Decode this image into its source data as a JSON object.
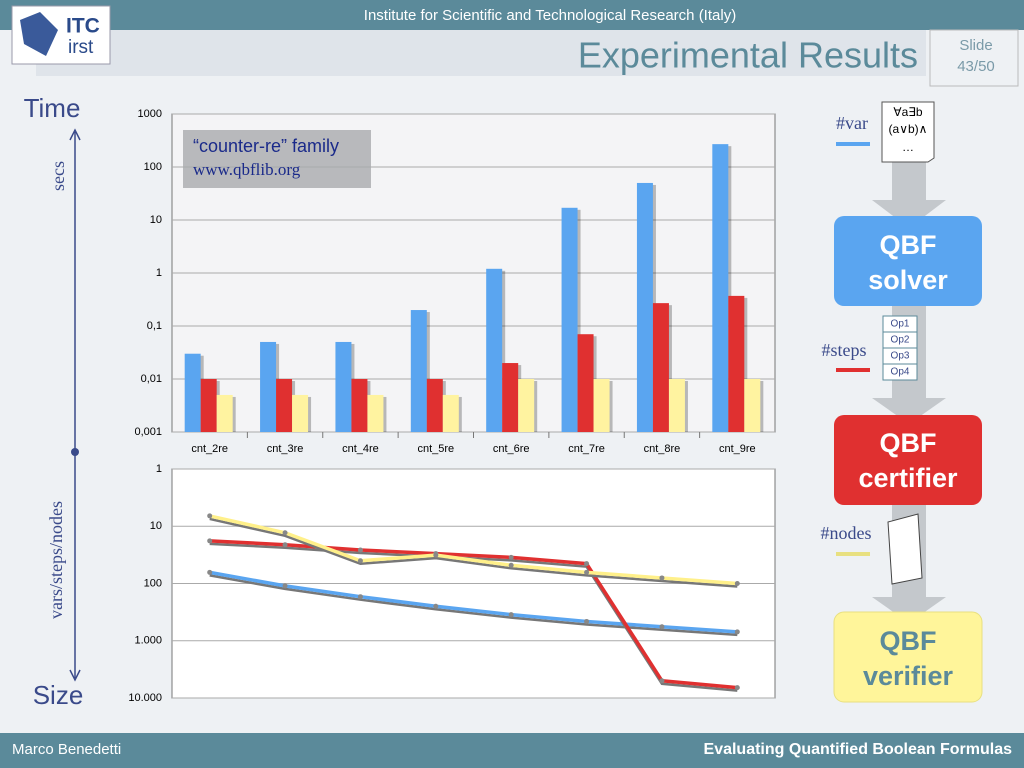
{
  "header": {
    "institute": "Institute for Scientific and Technological Research (Italy)",
    "title": "Experimental Results",
    "slide_label": "Slide",
    "slide_number": "43/50",
    "logo": [
      "ITC",
      "irst"
    ]
  },
  "footer": {
    "author": "Marco Benedetti",
    "talk": "Evaluating Quantified Boolean Formulas"
  },
  "axis_notes": {
    "top": "Time",
    "top_unit": "secs",
    "bottom_unit": "vars/steps/nodes",
    "bottom": "Size"
  },
  "inset": {
    "family": "“counter-re” family",
    "url": "www.qbflib.org"
  },
  "diagram": {
    "var_label": "#var",
    "formula": [
      "∀a∃b",
      "(a∨b)∧",
      "…"
    ],
    "solver": [
      "QBF",
      "solver"
    ],
    "ops": [
      "Op1",
      "Op2",
      "Op3",
      "Op4"
    ],
    "steps_label": "#steps",
    "certifier": [
      "QBF",
      "certifier"
    ],
    "nodes_label": "#nodes",
    "verifier": [
      "QBF",
      "verifier"
    ]
  },
  "chart_data": [
    {
      "type": "bar",
      "log": true,
      "grid": true,
      "categories": [
        "cnt_2re",
        "cnt_3re",
        "cnt_4re",
        "cnt_5re",
        "cnt_6re",
        "cnt_7re",
        "cnt_8re",
        "cnt_9re"
      ],
      "series": [
        {
          "color": "#5aa5f0",
          "values": [
            0.03,
            0.05,
            0.05,
            0.2,
            1.2,
            17,
            50,
            270
          ]
        },
        {
          "color": "#e03030",
          "values": [
            0.01,
            0.01,
            0.01,
            0.01,
            0.02,
            0.07,
            0.27,
            0.37
          ]
        },
        {
          "color": "#fff3a0",
          "values": [
            0.005,
            0.005,
            0.005,
            0.005,
            0.01,
            0.01,
            0.01,
            0.01
          ]
        }
      ],
      "ylim": [
        0.001,
        1000
      ],
      "yticks": [
        {
          "value": 0.001,
          "label": "0,001"
        },
        {
          "value": 0.01,
          "label": "0,01"
        },
        {
          "value": 0.1,
          "label": "0,1"
        },
        1,
        10,
        100,
        1000
      ]
    },
    {
      "type": "line",
      "log": true,
      "grid": true,
      "categories": [
        null,
        null,
        null,
        null,
        null,
        null,
        null,
        null
      ],
      "series": [
        {
          "color": "#5aa5f0",
          "values": [
            64,
            110,
            170,
            250,
            350,
            460,
            570,
            700
          ]
        },
        {
          "color": "#e03030",
          "values": [
            18,
            21,
            26,
            30,
            35,
            45,
            5000,
            6600
          ]
        },
        {
          "color": "#fff08a",
          "values": [
            6.6,
            13,
            40,
            32,
            48,
            64,
            80,
            100
          ]
        }
      ],
      "ylim": [
        10000,
        1
      ],
      "yticks": [
        1,
        10,
        100,
        {
          "value": 1000,
          "label": "1.000"
        },
        {
          "value": 10000,
          "label": "10.000"
        }
      ]
    }
  ]
}
